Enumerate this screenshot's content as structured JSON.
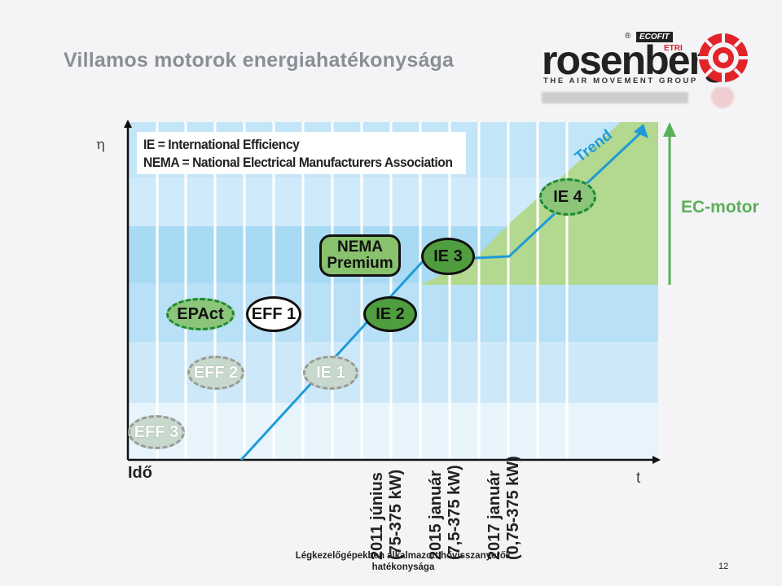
{
  "slide": {
    "title": "Villamos motorok energiahatékonysága",
    "footer": "Légkezelőgépekben alkalmazott hővisszanyerők hatékonysága",
    "page_number": "12"
  },
  "logo": {
    "wordmark": "rosenberg",
    "registered": "®",
    "ecofit": "ECOFIT",
    "etri": "ETRI",
    "tagline": "THE AIR MOVEMENT GROUP"
  },
  "diagram": {
    "y_axis_symbol": "η",
    "x_axis_label": "Idő",
    "x_axis_symbol": "t",
    "legend": [
      "IE = International Efficiency",
      "NEMA = National Electrical Manufacturers Association"
    ],
    "trend_label": "Trend",
    "ec_motor_label": "EC-motor",
    "badges": {
      "eff3": "EFF 3",
      "eff2": "EFF 2",
      "ie1": "IE 1",
      "epact": "EPAct",
      "eff1": "EFF 1",
      "ie2": "IE 2",
      "nema_line1": "NEMA",
      "nema_line2": "Premium",
      "ie3": "IE 3",
      "ie4": "IE 4"
    },
    "dates": [
      {
        "line1": "2011 június",
        "line2": "(75-375 kW)"
      },
      {
        "line1": "2015 január",
        "line2": "(7,5-375 kW)"
      },
      {
        "line1": "2017 január",
        "line2": "(0,75-375 kW)"
      }
    ],
    "colors": {
      "band_light": "#e4f2fb",
      "band_mid": "#b9e0f6",
      "band_strong": "#98d2f0",
      "trend_line": "#1f9bd8",
      "green_area": "#b3d88f",
      "ec_arrow": "#5ab057",
      "solid_badge": "#4f9d3e",
      "dashed_badge": "#8cc47a"
    }
  }
}
